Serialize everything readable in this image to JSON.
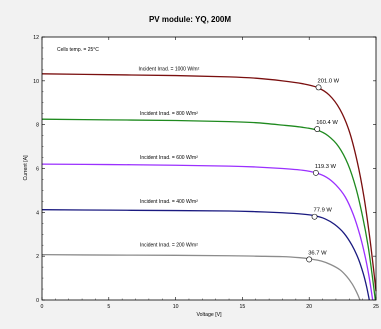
{
  "chart_data": {
    "type": "line",
    "title": "PV module:  YQ,  200M",
    "xlabel": "Voltage [V]",
    "ylabel": "Current [A]",
    "xlim": [
      0,
      25
    ],
    "ylim": [
      0,
      12
    ],
    "x_ticks": [
      0,
      5,
      10,
      15,
      20,
      25
    ],
    "y_ticks": [
      0,
      2,
      4,
      6,
      8,
      10,
      12
    ],
    "grid": false,
    "annotation": "Cells temp. = 25°C",
    "series": [
      {
        "name": "Incident Irrad. = 1000 W/m²",
        "color": "#7a0f0f",
        "label_pos": [
          9.5,
          10.3
        ],
        "points": [
          [
            0,
            10.32
          ],
          [
            5,
            10.28
          ],
          [
            10,
            10.24
          ],
          [
            14,
            10.18
          ],
          [
            16,
            10.12
          ],
          [
            18,
            10.0
          ],
          [
            19.5,
            9.87
          ],
          [
            20.6,
            9.7
          ],
          [
            21.5,
            9.35
          ],
          [
            22.3,
            8.7
          ],
          [
            23,
            7.7
          ],
          [
            23.6,
            6.3
          ],
          [
            24.1,
            4.7
          ],
          [
            24.5,
            3.0
          ],
          [
            24.8,
            1.5
          ],
          [
            25,
            0.4
          ]
        ],
        "mpp": {
          "x": 20.7,
          "y": 9.7,
          "label": "201.0 W"
        }
      },
      {
        "name": "Incident Irrad. = 800 W/m²",
        "color": "#1f8a1f",
        "label_pos": [
          9.5,
          8.25
        ],
        "points": [
          [
            0,
            8.25
          ],
          [
            5,
            8.22
          ],
          [
            10,
            8.19
          ],
          [
            14,
            8.14
          ],
          [
            16,
            8.09
          ],
          [
            18,
            7.98
          ],
          [
            19.5,
            7.88
          ],
          [
            20.6,
            7.75
          ],
          [
            21.4,
            7.5
          ],
          [
            22.2,
            7.0
          ],
          [
            22.9,
            6.2
          ],
          [
            23.5,
            5.1
          ],
          [
            24,
            3.8
          ],
          [
            24.4,
            2.5
          ],
          [
            24.7,
            1.2
          ],
          [
            24.95,
            0.0
          ]
        ],
        "mpp": {
          "x": 20.6,
          "y": 7.8,
          "label": "160.4 W"
        }
      },
      {
        "name": "Incident Irrad. = 600 W/m²",
        "color": "#9b30ff",
        "label_pos": [
          9.5,
          6.25
        ],
        "points": [
          [
            0,
            6.2
          ],
          [
            5,
            6.18
          ],
          [
            10,
            6.15
          ],
          [
            14,
            6.11
          ],
          [
            16,
            6.07
          ],
          [
            18,
            6.0
          ],
          [
            19.5,
            5.92
          ],
          [
            20.5,
            5.8
          ],
          [
            21.3,
            5.6
          ],
          [
            22,
            5.25
          ],
          [
            22.7,
            4.7
          ],
          [
            23.3,
            3.9
          ],
          [
            23.8,
            2.95
          ],
          [
            24.2,
            1.95
          ],
          [
            24.5,
            1.0
          ],
          [
            24.75,
            0.0
          ]
        ],
        "mpp": {
          "x": 20.5,
          "y": 5.8,
          "label": "119.3 W"
        }
      },
      {
        "name": "Incident Irrad. = 400 W/m²",
        "color": "#1a1a80",
        "label_pos": [
          9.5,
          4.25
        ],
        "points": [
          [
            0,
            4.12
          ],
          [
            5,
            4.1
          ],
          [
            10,
            4.08
          ],
          [
            14,
            4.06
          ],
          [
            16,
            4.03
          ],
          [
            18,
            3.98
          ],
          [
            19.5,
            3.92
          ],
          [
            20.4,
            3.85
          ],
          [
            21.2,
            3.7
          ],
          [
            21.9,
            3.45
          ],
          [
            22.6,
            3.05
          ],
          [
            23.2,
            2.5
          ],
          [
            23.7,
            1.85
          ],
          [
            24.05,
            1.2
          ],
          [
            24.3,
            0.6
          ],
          [
            24.5,
            0.0
          ]
        ],
        "mpp": {
          "x": 20.4,
          "y": 3.8,
          "label": "77.9 W"
        }
      },
      {
        "name": "Incident Irrad. = 200 W/m²",
        "color": "#8c8c8c",
        "label_pos": [
          9.5,
          2.25
        ],
        "points": [
          [
            0,
            2.07
          ],
          [
            5,
            2.05
          ],
          [
            10,
            2.04
          ],
          [
            14,
            2.02
          ],
          [
            16,
            2.0
          ],
          [
            18,
            1.98
          ],
          [
            19.3,
            1.93
          ],
          [
            20.1,
            1.87
          ],
          [
            20.9,
            1.78
          ],
          [
            21.6,
            1.62
          ],
          [
            22.3,
            1.38
          ],
          [
            22.8,
            1.08
          ],
          [
            23.2,
            0.75
          ],
          [
            23.5,
            0.42
          ],
          [
            23.7,
            0.15
          ],
          [
            23.8,
            0.0
          ]
        ],
        "mpp": {
          "x": 20.0,
          "y": 1.85,
          "label": "36.7 W"
        }
      }
    ]
  }
}
